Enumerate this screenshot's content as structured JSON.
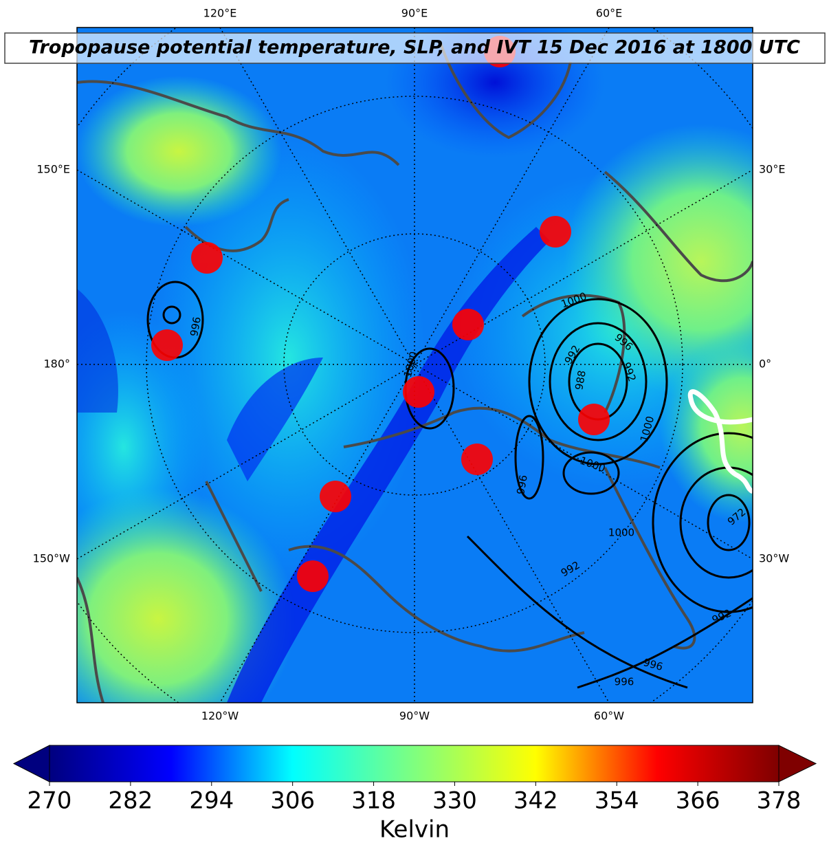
{
  "title": "Tropopause potential temperature, SLP, and IVT 15 Dec 2016 at 1800 UTC",
  "graticule_labels": {
    "top": [
      "120°E",
      "90°E",
      "60°E"
    ],
    "bottom": [
      "120°W",
      "90°W",
      "60°W"
    ],
    "left": [
      "150°E",
      "180°",
      "150°W"
    ],
    "right": [
      "30°E",
      "0°",
      "30°W"
    ]
  },
  "contour_labels": [
    996,
    1000,
    1000,
    996,
    992,
    992,
    988,
    996,
    1000,
    1000,
    996,
    1000,
    972,
    992,
    996,
    992
  ],
  "colorbar": {
    "label": "Kelvin",
    "range": [
      270,
      378
    ],
    "ticks": [
      270,
      282,
      294,
      306,
      318,
      330,
      342,
      354,
      366,
      378
    ],
    "colors": [
      "#00007f",
      "#0000ff",
      "#00ffff",
      "#7fff7f",
      "#ffff00",
      "#ff0000",
      "#7f0000"
    ]
  }
}
